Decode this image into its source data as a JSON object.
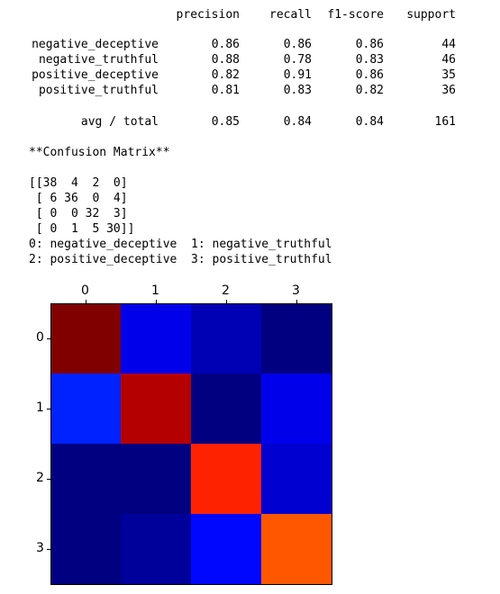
{
  "report": {
    "headers": [
      "precision",
      "recall",
      "f1-score",
      "support"
    ],
    "rows": [
      {
        "label": "negative_deceptive",
        "precision": "0.86",
        "recall": "0.86",
        "f1": "0.86",
        "support": "44"
      },
      {
        "label": "negative_truthful",
        "precision": "0.88",
        "recall": "0.78",
        "f1": "0.83",
        "support": "46"
      },
      {
        "label": "positive_deceptive",
        "precision": "0.82",
        "recall": "0.91",
        "f1": "0.86",
        "support": "35"
      },
      {
        "label": "positive_truthful",
        "precision": "0.81",
        "recall": "0.83",
        "f1": "0.82",
        "support": "36"
      }
    ],
    "avg": {
      "label": "avg / total",
      "precision": "0.85",
      "recall": "0.84",
      "f1": "0.84",
      "support": "161"
    }
  },
  "confusion": {
    "title": "**Confusion Matrix**",
    "matrix_text": [
      "[[38  4  2  0]",
      " [ 6 36  0  4]",
      " [ 0  0 32  3]",
      " [ 0  1  5 30]]"
    ],
    "legend_lines": [
      "0: negative_deceptive  1: negative_truthful",
      "2: positive_deceptive  3: positive_truthful"
    ]
  },
  "chart_data": {
    "type": "heatmap",
    "x": [
      "0",
      "1",
      "2",
      "3"
    ],
    "y": [
      "0",
      "1",
      "2",
      "3"
    ],
    "values": [
      [
        38,
        4,
        2,
        0
      ],
      [
        6,
        36,
        0,
        4
      ],
      [
        0,
        0,
        32,
        3
      ],
      [
        0,
        1,
        5,
        30
      ]
    ],
    "colormap": "jet",
    "xaxis_position": "top"
  }
}
